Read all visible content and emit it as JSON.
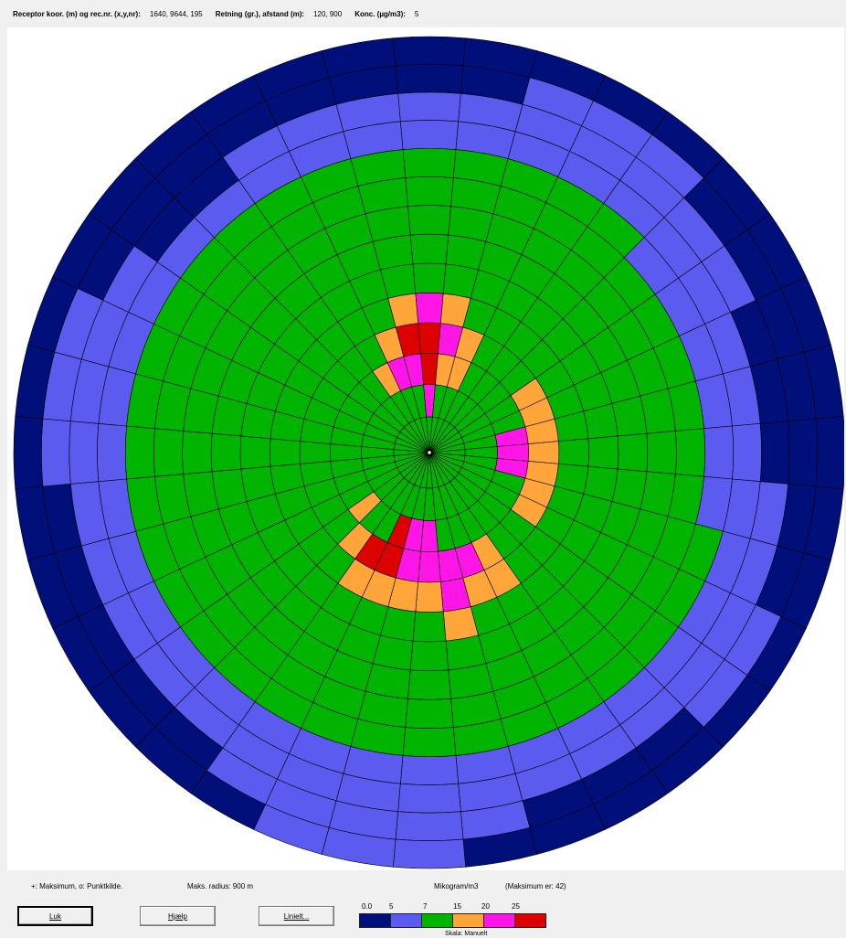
{
  "header": {
    "receptor_label": "Receptor koor. (m) og rec.nr. (x,y,nr):",
    "receptor_value": "1640, 9644, 195",
    "direction_label": "Retning (gr.), afstand (m):",
    "direction_value": "120, 900",
    "conc_label": "Konc. (µg/m3):",
    "conc_value": "5"
  },
  "legend": {
    "markers_text": "+: Maksimum, o: Punktkilde.",
    "max_radius_text": "Maks. radius: 900 m",
    "units_text": "Mikogram/m3",
    "maximum_text": "(Maksimum er: 42)",
    "scale_caption": "Skala: Manuelt",
    "scale_labels": [
      "0.0",
      "5",
      "7",
      "15",
      "20",
      "25"
    ],
    "scale_colors": [
      "#000f7a",
      "#5b5bf0",
      "#00b400",
      "#ffa53a",
      "#ff16e6",
      "#dc0000"
    ]
  },
  "buttons": {
    "close": "Luk",
    "help": "Hjælp",
    "lines": "Linielt..."
  },
  "plot": {
    "rings": 14,
    "sectors": 36,
    "colors": {
      "0": "#000f7a",
      "1": "#5b5bf0",
      "2": "#00b400",
      "3": "#ffa53a",
      "4": "#ff16e6",
      "5": "#dc0000"
    },
    "outer_ring_start": [
      12,
      12,
      13,
      13,
      13,
      12,
      12,
      11,
      11,
      11,
      12,
      12,
      13,
      13,
      12,
      12,
      12,
      13,
      14,
      14,
      14,
      13,
      12,
      12,
      12,
      12,
      12,
      13,
      13,
      13,
      12,
      11,
      11,
      12,
      12,
      12
    ],
    "blue_ring_start": [
      10,
      10,
      10,
      10,
      10,
      9,
      9,
      9,
      9,
      9,
      9,
      10,
      10,
      10,
      10,
      10,
      10,
      10,
      10,
      10,
      10,
      10,
      10,
      10,
      10,
      10,
      10,
      10,
      10,
      10,
      10,
      10,
      10,
      10,
      10,
      10
    ],
    "hot_cells": [
      {
        "s": 0,
        "r": 4,
        "c": 4
      },
      {
        "s": 0,
        "r": 3,
        "c": 5
      },
      {
        "s": 0,
        "r": 2,
        "c": 5
      },
      {
        "s": 0,
        "r": 1,
        "c": 4
      },
      {
        "s": 35,
        "r": 4,
        "c": 3
      },
      {
        "s": 35,
        "r": 3,
        "c": 5
      },
      {
        "s": 35,
        "r": 2,
        "c": 4
      },
      {
        "s": 1,
        "r": 4,
        "c": 3
      },
      {
        "s": 1,
        "r": 3,
        "c": 4
      },
      {
        "s": 1,
        "r": 2,
        "c": 3
      },
      {
        "s": 34,
        "r": 3,
        "c": 3
      },
      {
        "s": 34,
        "r": 2,
        "c": 4
      },
      {
        "s": 2,
        "r": 3,
        "c": 3
      },
      {
        "s": 2,
        "r": 2,
        "c": 3
      },
      {
        "s": 33,
        "r": 2,
        "c": 3
      },
      {
        "s": 6,
        "r": 3,
        "c": 3
      },
      {
        "s": 7,
        "r": 3,
        "c": 3
      },
      {
        "s": 8,
        "r": 3,
        "c": 3
      },
      {
        "s": 9,
        "r": 3,
        "c": 3
      },
      {
        "s": 10,
        "r": 3,
        "c": 3
      },
      {
        "s": 11,
        "r": 3,
        "c": 3
      },
      {
        "s": 12,
        "r": 3,
        "c": 3
      },
      {
        "s": 8,
        "r": 2,
        "c": 4
      },
      {
        "s": 9,
        "r": 2,
        "c": 4
      },
      {
        "s": 10,
        "r": 2,
        "c": 4
      },
      {
        "s": 15,
        "r": 4,
        "c": 3
      },
      {
        "s": 16,
        "r": 4,
        "c": 3
      },
      {
        "s": 17,
        "r": 5,
        "c": 3
      },
      {
        "s": 18,
        "r": 4,
        "c": 3
      },
      {
        "s": 19,
        "r": 4,
        "c": 3
      },
      {
        "s": 20,
        "r": 4,
        "c": 3
      },
      {
        "s": 17,
        "r": 4,
        "c": 4
      },
      {
        "s": 18,
        "r": 3,
        "c": 4
      },
      {
        "s": 19,
        "r": 3,
        "c": 4
      },
      {
        "s": 16,
        "r": 3,
        "c": 4
      },
      {
        "s": 20,
        "r": 3,
        "c": 5
      },
      {
        "s": 21,
        "r": 3,
        "c": 5
      },
      {
        "s": 21,
        "r": 4,
        "c": 3
      },
      {
        "s": 22,
        "r": 3,
        "c": 3
      },
      {
        "s": 19,
        "r": 2,
        "c": 4
      },
      {
        "s": 20,
        "r": 2,
        "c": 5
      },
      {
        "s": 23,
        "r": 2,
        "c": 3
      },
      {
        "s": 15,
        "r": 3,
        "c": 3
      },
      {
        "s": 17,
        "r": 3,
        "c": 4
      },
      {
        "s": 18,
        "r": 2,
        "c": 4
      }
    ]
  }
}
